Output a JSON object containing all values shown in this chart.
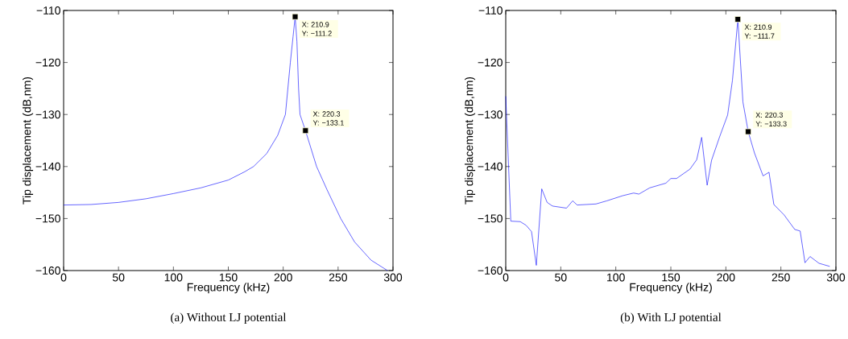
{
  "chart_data": [
    {
      "type": "line",
      "title": "(a)  Without LJ potential",
      "xlabel": "Frequency (kHz)",
      "ylabel": "Tip displacement (dB,nm)",
      "xlim": [
        0,
        300
      ],
      "ylim": [
        -160,
        -110
      ],
      "xticks": [
        0,
        50,
        100,
        150,
        200,
        250,
        300
      ],
      "yticks": [
        {
          "value": -160,
          "label": "−160"
        },
        {
          "value": -150,
          "label": "−150"
        },
        {
          "value": -140,
          "label": "−140"
        },
        {
          "value": -130,
          "label": "−130"
        },
        {
          "value": -120,
          "label": "−120"
        },
        {
          "value": -110,
          "label": "−110"
        }
      ],
      "grid": false,
      "series": [
        {
          "color": "#0000ff",
          "x": [
            0,
            25,
            50,
            75,
            100,
            125,
            150,
            165,
            173,
            185,
            195,
            202,
            206.5,
            209,
            210.9,
            212.5,
            214,
            215.3,
            220.3,
            230.4,
            240,
            252.4,
            265,
            280,
            295
          ],
          "values": [
            -147.4,
            -147.3,
            -146.9,
            -146.2,
            -145.2,
            -144.1,
            -142.6,
            -141,
            -140,
            -137.5,
            -134,
            -130,
            -120,
            -115,
            -111.2,
            -116,
            -125,
            -130,
            -133.1,
            -140,
            -144.5,
            -150,
            -154.5,
            -158,
            -160
          ]
        },
        {
          "type": "scatter",
          "marker": "square",
          "color": "#000000",
          "x": [
            210.9,
            220.3
          ],
          "values": [
            -111.2,
            -133.1
          ]
        }
      ],
      "annotations": [
        "X: 210.9",
        "Y: −111.2",
        "X: 220.3",
        "Y: −133.1"
      ]
    },
    {
      "type": "line",
      "title": "(b)  With LJ potential",
      "xlabel": "Frequency (kHz)",
      "ylabel": "Tip displacement (dB,nm)",
      "xlim": [
        0,
        300
      ],
      "ylim": [
        -160,
        -110
      ],
      "xticks": [
        0,
        50,
        100,
        150,
        200,
        250,
        300
      ],
      "yticks": [
        {
          "value": -160,
          "label": "−160"
        },
        {
          "value": -150,
          "label": "−150"
        },
        {
          "value": -140,
          "label": "−140"
        },
        {
          "value": -130,
          "label": "−130"
        },
        {
          "value": -120,
          "label": "−120"
        },
        {
          "value": -110,
          "label": "−110"
        }
      ],
      "grid": false,
      "series": [
        {
          "color": "#0000ff",
          "x": [
            0,
            4.6,
            13.2,
            18.5,
            23.4,
            27.8,
            32.7,
            37.6,
            42.5,
            55.2,
            60.8,
            64.9,
            82,
            91.8,
            106.4,
            116.2,
            121,
            130.8,
            145.5,
            150,
            155.2,
            167.4,
            173.5,
            178,
            183,
            187,
            194.3,
            201.6,
            206,
            210.9,
            215.5,
            220.3,
            226,
            233.8,
            239.2,
            243.6,
            252.9,
            262.6,
            267.5,
            271.9,
            276.5,
            284.6,
            294.4
          ],
          "values": [
            -126.5,
            -150.5,
            -150.6,
            -151.3,
            -152.5,
            -159,
            -144.3,
            -146.9,
            -147.6,
            -148,
            -146.6,
            -147.4,
            -147.2,
            -146.6,
            -145.6,
            -145.1,
            -145.3,
            -144.1,
            -143.2,
            -142.3,
            -142.3,
            -140.5,
            -138.7,
            -134.4,
            -143.6,
            -138.8,
            -134.3,
            -130.1,
            -123.4,
            -111.7,
            -127.6,
            -133.3,
            -137.4,
            -141.8,
            -141.1,
            -147.3,
            -149.3,
            -152.1,
            -152.4,
            -158.5,
            -157.3,
            -158.6,
            -159.2
          ]
        },
        {
          "type": "scatter",
          "marker": "square",
          "color": "#000000",
          "x": [
            210.9,
            220.3
          ],
          "values": [
            -111.7,
            -133.3
          ]
        }
      ],
      "annotations": [
        "X: 210.9",
        "Y: −111.7",
        "X: 220.3",
        "Y: −133.3"
      ]
    }
  ]
}
